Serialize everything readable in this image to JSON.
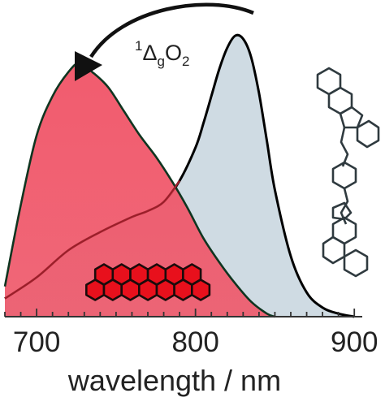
{
  "chart_data": {
    "type": "area",
    "xlabel": "wavelength / nm",
    "ylabel": "",
    "xlim": [
      680,
      905
    ],
    "ylim": [
      0,
      1.0
    ],
    "x_ticks": [
      700,
      800,
      900
    ],
    "grid": false,
    "annotation": {
      "sup": "1",
      "delta": "Δ",
      "sub_g": "g",
      "O": "O",
      "sub_2": "2"
    },
    "series": [
      {
        "color": "#cfdbe3",
        "edge": "#000000",
        "x": [
          680,
          700,
          720,
          740,
          760,
          770,
          780,
          790,
          800,
          805,
          810,
          815,
          820,
          825,
          830,
          835,
          840,
          845,
          850,
          860,
          870,
          880,
          890,
          900
        ],
        "y": [
          0.06,
          0.13,
          0.22,
          0.28,
          0.33,
          0.35,
          0.38,
          0.45,
          0.56,
          0.64,
          0.73,
          0.82,
          0.89,
          0.93,
          0.92,
          0.86,
          0.74,
          0.58,
          0.42,
          0.2,
          0.08,
          0.03,
          0.01,
          0.0
        ]
      },
      {
        "color": "#f0566a",
        "edge": "#0f3520",
        "x": [
          680,
          690,
          700,
          710,
          720,
          727,
          735,
          745,
          755,
          765,
          775,
          785,
          795,
          805,
          815,
          825,
          835,
          845,
          850
        ],
        "y": [
          0.1,
          0.37,
          0.6,
          0.73,
          0.81,
          0.84,
          0.81,
          0.76,
          0.68,
          0.6,
          0.53,
          0.45,
          0.36,
          0.26,
          0.18,
          0.11,
          0.05,
          0.01,
          0.0
        ]
      }
    ]
  }
}
